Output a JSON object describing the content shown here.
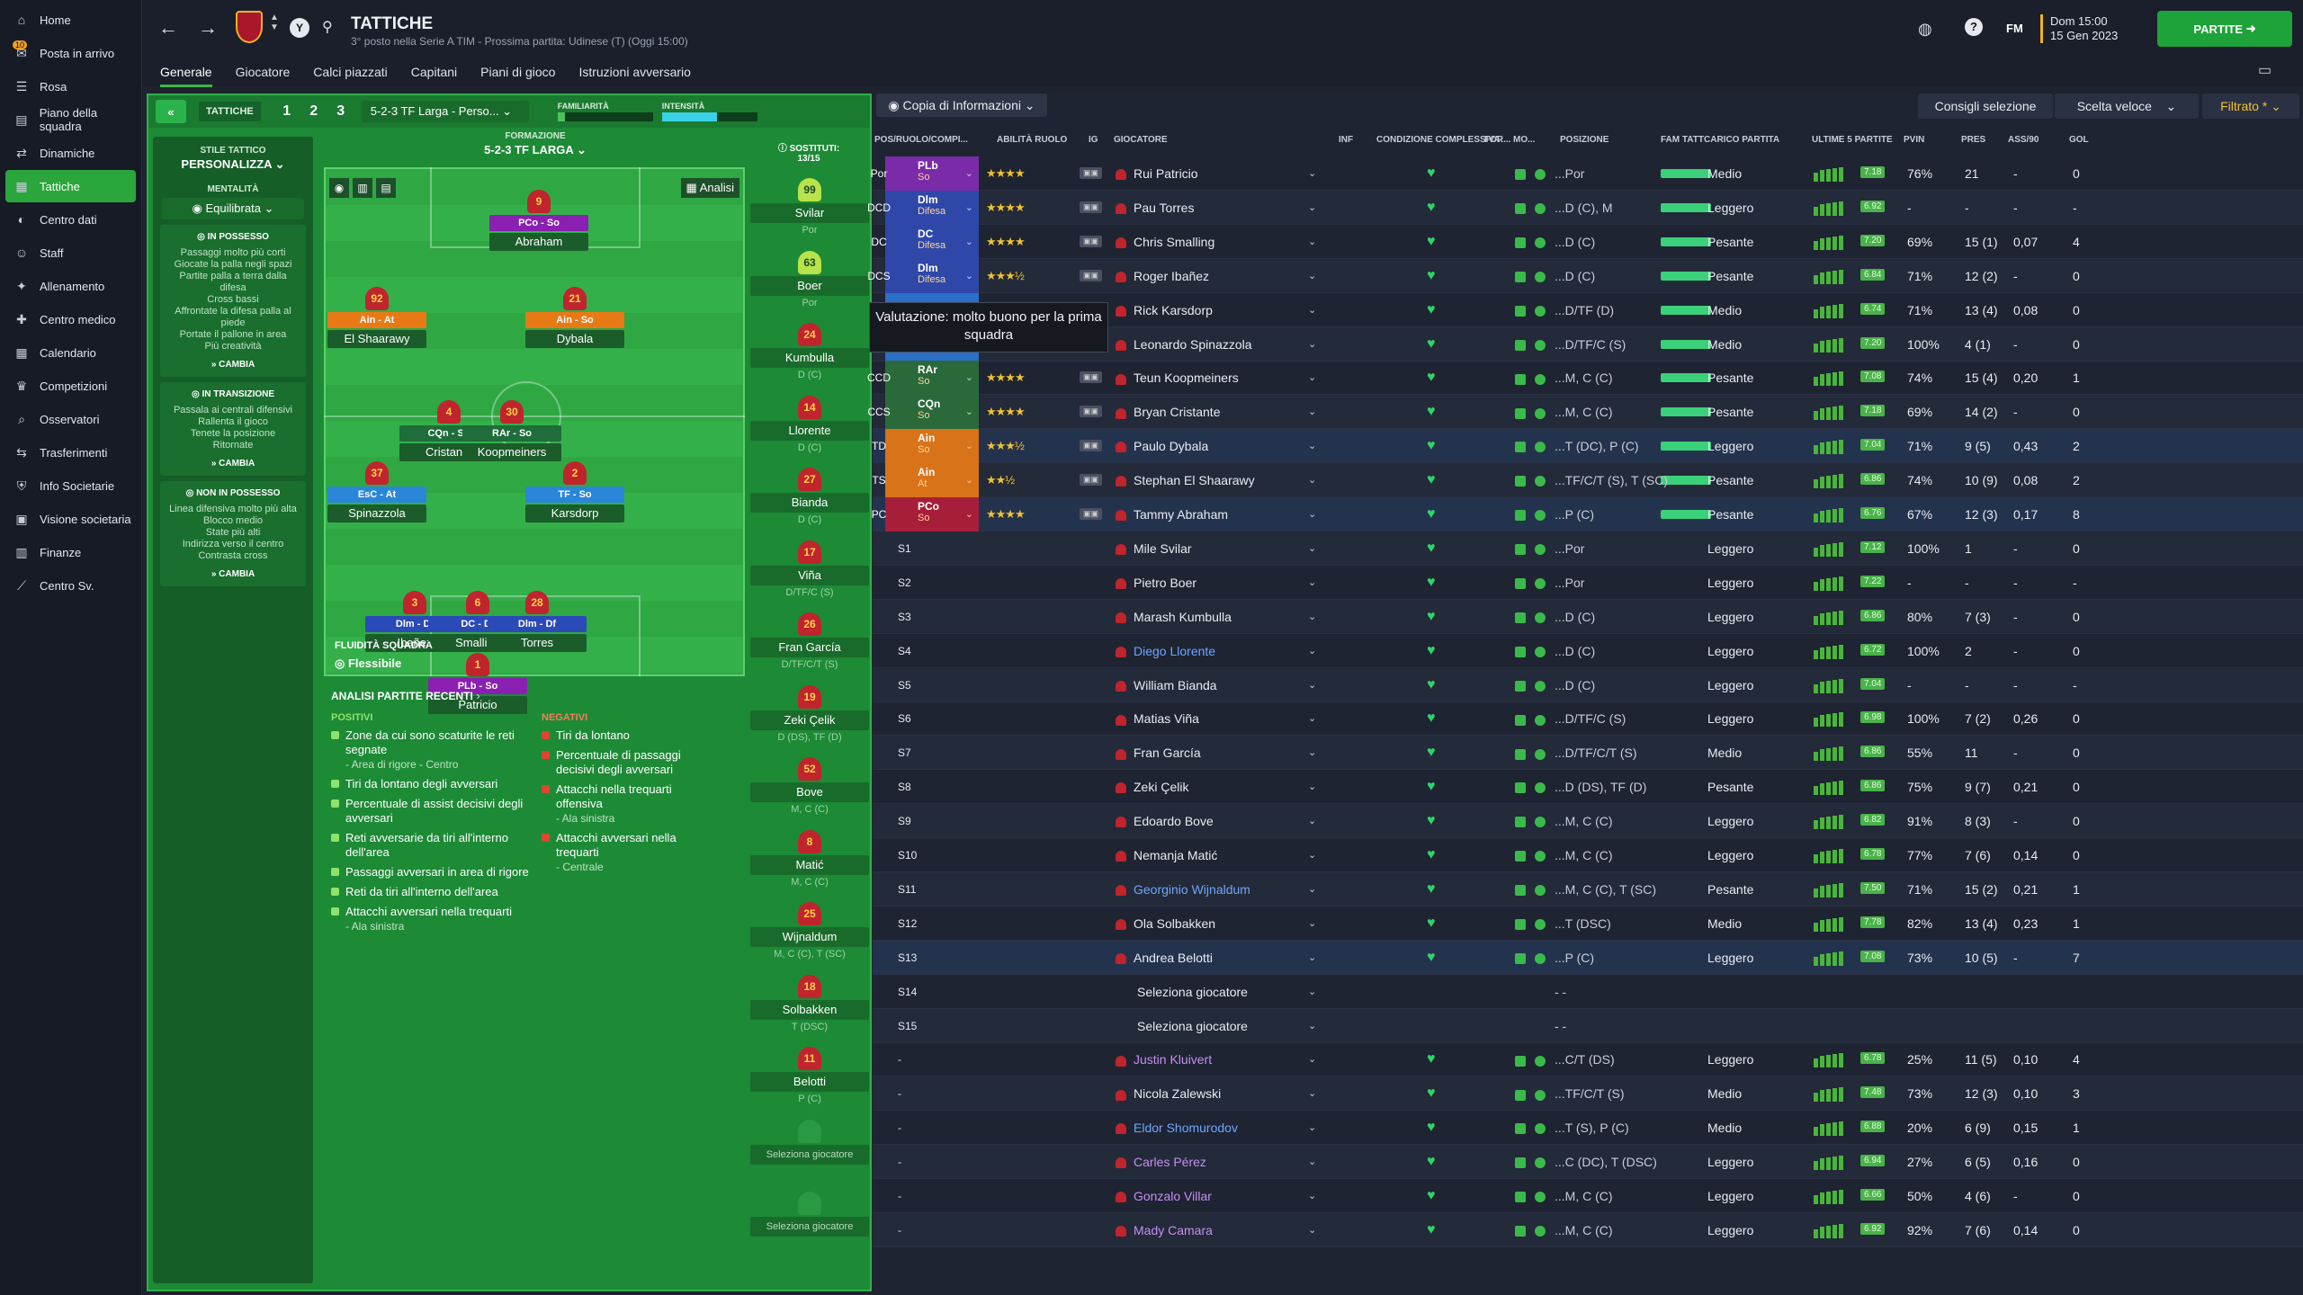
{
  "sidebar": {
    "items": [
      {
        "label": "Home",
        "icon": "home-icon"
      },
      {
        "label": "Posta in arrivo",
        "icon": "inbox-icon",
        "badge": "10"
      },
      {
        "label": "Rosa",
        "icon": "squad-icon"
      },
      {
        "label": "Piano della squadra",
        "icon": "plan-icon"
      },
      {
        "label": "Dinamiche",
        "icon": "dynamics-icon"
      },
      {
        "label": "Tattiche",
        "icon": "tactics-icon",
        "active": true
      },
      {
        "label": "Centro dati",
        "icon": "data-icon"
      },
      {
        "label": "Staff",
        "icon": "staff-icon"
      },
      {
        "label": "Allenamento",
        "icon": "training-icon"
      },
      {
        "label": "Centro medico",
        "icon": "medical-icon"
      },
      {
        "label": "Calendario",
        "icon": "calendar-icon"
      },
      {
        "label": "Competizioni",
        "icon": "trophy-icon"
      },
      {
        "label": "Osservatori",
        "icon": "scout-icon"
      },
      {
        "label": "Trasferimenti",
        "icon": "transfer-icon"
      },
      {
        "label": "Info Societarie",
        "icon": "club-info-icon"
      },
      {
        "label": "Visione societaria",
        "icon": "vision-icon"
      },
      {
        "label": "Finanze",
        "icon": "finance-icon"
      },
      {
        "label": "Centro Sv.",
        "icon": "development-icon"
      }
    ]
  },
  "header": {
    "title": "TATTICHE",
    "subtitle": "3° posto nella Serie A TIM - Prossima partita: Udinese (T) (Oggi 15:00)",
    "tabs": [
      "Generale",
      "Giocatore",
      "Calci piazzati",
      "Capitani",
      "Piani di gioco",
      "Istruzioni avversario"
    ],
    "date_line1": "Dom 15:00",
    "date_line2": "15 Gen 2023",
    "continue_label": "PARTITE",
    "fm_label": "FM"
  },
  "tactic": {
    "label": "TATTICHE",
    "slots": [
      "1",
      "2",
      "3"
    ],
    "selected": "5-2-3 TF Larga - Perso...",
    "familiarity_label": "FAMILIARITÀ",
    "intensity_label": "INTENSITÀ",
    "style_label": "STILE TATTICO",
    "style_value": "PERSONALIZZA",
    "mentality_label": "MENTALITÀ",
    "mentality_value": "Equilibrata",
    "formation_label": "FORMAZIONE",
    "formation_value": "5-2-3 TF LARGA",
    "analysis_btn": "Analisi",
    "fluidity_label": "FLUIDITÀ SQUADRA",
    "fluidity_value": "Flessibile",
    "subs_label": "SOSTITUTI:",
    "subs_count": "13/15"
  },
  "phases": [
    {
      "title": "IN POSSESSO",
      "lines": [
        "Passaggi molto più corti",
        "Giocate la palla negli spazi",
        "Partite palla a terra dalla difesa",
        "Cross bassi",
        "Affrontate la difesa palla al piede",
        "Portate il pallone in area",
        "Più creatività"
      ],
      "change": "CAMBIA"
    },
    {
      "title": "IN TRANSIZIONE",
      "lines": [
        "Passala ai centrali difensivi",
        "Rallenta il gioco",
        "Tenete la posizione",
        "Ritornate"
      ],
      "change": "CAMBIA"
    },
    {
      "title": "NON IN POSSESSO",
      "lines": [
        "Linea difensiva molto più alta",
        "Blocco medio",
        "State più alti",
        "Indirizza verso il centro",
        "Contrasta cross"
      ],
      "change": "CAMBIA"
    }
  ],
  "pitch_players": [
    {
      "num": "9",
      "role": "PCo - So",
      "name": "Abraham",
      "color": "#8a1fb2"
    },
    {
      "num": "92",
      "role": "Ain - At",
      "name": "El Shaarawy",
      "color": "#e87a16"
    },
    {
      "num": "21",
      "role": "Ain - So",
      "name": "Dybala",
      "color": "#e87a16"
    },
    {
      "num": "4",
      "role": "CQn - So",
      "name": "Cristante",
      "color": "#1f6d3a"
    },
    {
      "num": "30",
      "role": "RAr - So",
      "name": "Koopmeiners",
      "color": "#1f6d3a"
    },
    {
      "num": "37",
      "role": "EsC - At",
      "name": "Spinazzola",
      "color": "#2a86d8"
    },
    {
      "num": "2",
      "role": "TF - So",
      "name": "Karsdorp",
      "color": "#2a86d8"
    },
    {
      "num": "3",
      "role": "Dlm - Df",
      "name": "Ibañez",
      "color": "#2a4ab8"
    },
    {
      "num": "6",
      "role": "DC - Df",
      "name": "Smalling",
      "color": "#2a4ab8"
    },
    {
      "num": "28",
      "role": "Dlm - Df",
      "name": "Torres",
      "color": "#2a4ab8"
    },
    {
      "num": "1",
      "role": "PLb - So",
      "name": "Patricio",
      "color": "#8a1fb2"
    }
  ],
  "subs": [
    {
      "num": "99",
      "name": "Svilar",
      "pos": "Por"
    },
    {
      "num": "63",
      "name": "Boer",
      "pos": "Por"
    },
    {
      "num": "24",
      "name": "Kumbulla",
      "pos": "D (C)"
    },
    {
      "num": "14",
      "name": "Llorente",
      "pos": "D (C)"
    },
    {
      "num": "27",
      "name": "Bianda",
      "pos": "D (C)"
    },
    {
      "num": "17",
      "name": "Viña",
      "pos": "D/TF/C (S)"
    },
    {
      "num": "26",
      "name": "Fran García",
      "pos": "D/TF/C/T (S)"
    },
    {
      "num": "19",
      "name": "Zeki Çelik",
      "pos": "D (DS), TF (D)"
    },
    {
      "num": "52",
      "name": "Bove",
      "pos": "M, C (C)"
    },
    {
      "num": "8",
      "name": "Matić",
      "pos": "M, C (C)"
    },
    {
      "num": "25",
      "name": "Wijnaldum",
      "pos": "M, C (C), T (SC)"
    },
    {
      "num": "18",
      "name": "Solbakken",
      "pos": "T (DSC)"
    },
    {
      "num": "11",
      "name": "Belotti",
      "pos": "P (C)"
    },
    {
      "num": "",
      "name": "Seleziona giocatore",
      "pos": ""
    },
    {
      "num": "",
      "name": "Seleziona giocatore",
      "pos": ""
    }
  ],
  "analysis": {
    "title": "ANALISI PARTITE RECENTI",
    "positive_label": "POSITIVI",
    "negative_label": "NEGATIVI",
    "positives": [
      {
        "t": "Zone da cui sono scaturite le reti segnate",
        "s": "- Area di rigore - Centro"
      },
      {
        "t": "Tiri da lontano degli avversari",
        "s": ""
      },
      {
        "t": "Percentuale di assist decisivi degli avversari",
        "s": ""
      },
      {
        "t": "Reti avversarie da tiri all'interno dell'area",
        "s": ""
      },
      {
        "t": "Passaggi avversari in area di rigore",
        "s": ""
      },
      {
        "t": "Reti da tiri all'interno dell'area",
        "s": ""
      },
      {
        "t": "Attacchi avversari nella trequarti",
        "s": "- Ala sinistra"
      }
    ],
    "negatives": [
      {
        "t": "Tiri da lontano",
        "s": ""
      },
      {
        "t": "Percentuale di passaggi decisivi degli avversari",
        "s": ""
      },
      {
        "t": "Attacchi nella trequarti offensiva",
        "s": "- Ala sinistra"
      },
      {
        "t": "Attacchi avversari nella trequarti",
        "s": "- Centrale"
      }
    ]
  },
  "table": {
    "copy_label": "Copia di Informazioni",
    "btn_advice": "Consigli selezione",
    "btn_quick": "Scelta veloce",
    "btn_filter": "Filtrato *",
    "tooltip": "Valutazione: molto buono per la prima squadra",
    "headers": [
      "POS/RUOLO/COMPI...",
      "ABILITÀ RUOLO",
      "IG",
      "GIOCATORE",
      "INF",
      "CONDIZIONE COMPLESSIVA",
      "FOR...",
      "MO...",
      "POSIZIONE",
      "FAM TATT",
      "CARICO PARTITA",
      "ULTIME 5 PARTITE",
      "PVIN",
      "PRES",
      "ASS/90",
      "GOL"
    ],
    "rows": [
      {
        "slot": "Por",
        "role": "PLb",
        "duty": "So",
        "color": "#7a2ba8",
        "stars": "★★★★",
        "name": "Rui Patricio",
        "pos": "...Por",
        "load": "Medio",
        "rating": "7.18",
        "pvin": "76%",
        "pres": "21",
        "ass": "-",
        "gol": "0"
      },
      {
        "slot": "DCD",
        "role": "Dlm",
        "duty": "Difesa",
        "color": "#2e47a8",
        "stars": "★★★★",
        "name": "Pau Torres",
        "pos": "...D (C), M",
        "load": "Leggero",
        "rating": "6.92",
        "pvin": "-",
        "pres": "-",
        "ass": "-",
        "gol": "-"
      },
      {
        "slot": "DC",
        "role": "DC",
        "duty": "Difesa",
        "color": "#2e47a8",
        "stars": "★★★★",
        "name": "Chris Smalling",
        "pos": "...D (C)",
        "load": "Pesante",
        "rating": "7.20",
        "pvin": "69%",
        "pres": "15 (1)",
        "ass": "0,07",
        "gol": "4"
      },
      {
        "slot": "DCS",
        "role": "Dlm",
        "duty": "Difesa",
        "color": "#2e47a8",
        "stars": "★★★½",
        "name": "Roger Ibañez",
        "pos": "...D (C)",
        "load": "Pesante",
        "rating": "6.84",
        "pvin": "71%",
        "pres": "12 (2)",
        "ass": "-",
        "gol": "0"
      },
      {
        "slot": "",
        "role": "",
        "duty": "",
        "color": "#2a6fc8",
        "stars": "",
        "name": "Rick Karsdorp",
        "pos": "...D/TF (D)",
        "load": "Medio",
        "rating": "6.74",
        "pvin": "71%",
        "pres": "13 (4)",
        "ass": "0,08",
        "gol": "0"
      },
      {
        "slot": "",
        "role": "",
        "duty": "",
        "color": "#2a6fc8",
        "stars": "",
        "name": "Leonardo Spinazzola",
        "pos": "...D/TF/C (S)",
        "load": "Medio",
        "rating": "7.20",
        "pvin": "100%",
        "pres": "4 (1)",
        "ass": "-",
        "gol": "0"
      },
      {
        "slot": "CCD",
        "role": "RAr",
        "duty": "So",
        "color": "#2a6a3a",
        "stars": "★★★★",
        "name": "Teun Koopmeiners",
        "pos": "...M, C (C)",
        "load": "Pesante",
        "rating": "7.08",
        "pvin": "74%",
        "pres": "15 (4)",
        "ass": "0,20",
        "gol": "1"
      },
      {
        "slot": "CCS",
        "role": "CQn",
        "duty": "So",
        "color": "#2a6a3a",
        "stars": "★★★★",
        "name": "Bryan Cristante",
        "pos": "...M, C (C)",
        "load": "Pesante",
        "rating": "7.18",
        "pvin": "69%",
        "pres": "14 (2)",
        "ass": "-",
        "gol": "0"
      },
      {
        "slot": "TD",
        "role": "Ain",
        "duty": "So",
        "color": "#d9731a",
        "stars": "★★★½",
        "name": "Paulo Dybala",
        "pos": "...T (DC), P (C)",
        "load": "Leggero",
        "rating": "7.04",
        "pvin": "71%",
        "pres": "9 (5)",
        "ass": "0,43",
        "gol": "2"
      },
      {
        "slot": "TS",
        "role": "Ain",
        "duty": "At",
        "color": "#d9731a",
        "stars": "★★½",
        "name": "Stephan El Shaarawy",
        "pos": "...TF/C/T (S), T (SC)",
        "load": "Pesante",
        "rating": "6.86",
        "pvin": "74%",
        "pres": "10 (9)",
        "ass": "0,08",
        "gol": "2"
      },
      {
        "slot": "PC",
        "role": "PCo",
        "duty": "So",
        "color": "#a61e3a",
        "stars": "★★★★",
        "name": "Tammy Abraham",
        "pos": "...P (C)",
        "load": "Pesante",
        "rating": "6.76",
        "pvin": "67%",
        "pres": "12 (3)",
        "ass": "0,17",
        "gol": "8"
      },
      {
        "slot": "S1",
        "name": "Mile Svilar",
        "pos": "...Por",
        "load": "Leggero",
        "rating": "7.12",
        "pvin": "100%",
        "pres": "1",
        "ass": "-",
        "gol": "0"
      },
      {
        "slot": "S2",
        "name": "Pietro Boer",
        "pos": "...Por",
        "load": "Leggero",
        "rating": "7.22",
        "pvin": "-",
        "pres": "-",
        "ass": "-",
        "gol": "-"
      },
      {
        "slot": "S3",
        "name": "Marash Kumbulla",
        "pos": "...D (C)",
        "load": "Leggero",
        "rating": "6.86",
        "pvin": "80%",
        "pres": "7 (3)",
        "ass": "-",
        "gol": "0"
      },
      {
        "slot": "S4",
        "name": "Diego Llorente",
        "pos": "...D (C)",
        "load": "Leggero",
        "rating": "6.72",
        "pvin": "100%",
        "pres": "2",
        "ass": "-",
        "gol": "0"
      },
      {
        "slot": "S5",
        "name": "William Bianda",
        "pos": "...D (C)",
        "load": "Leggero",
        "rating": "7.04",
        "pvin": "-",
        "pres": "-",
        "ass": "-",
        "gol": "-"
      },
      {
        "slot": "S6",
        "name": "Matias Viña",
        "pos": "...D/TF/C (S)",
        "load": "Leggero",
        "rating": "6.98",
        "pvin": "100%",
        "pres": "7 (2)",
        "ass": "0,26",
        "gol": "0"
      },
      {
        "slot": "S7",
        "name": "Fran García",
        "pos": "...D/TF/C/T (S)",
        "load": "Medio",
        "rating": "6.86",
        "pvin": "55%",
        "pres": "11",
        "ass": "-",
        "gol": "0"
      },
      {
        "slot": "S8",
        "name": "Zeki Çelik",
        "pos": "...D (DS), TF (D)",
        "load": "Pesante",
        "rating": "6.86",
        "pvin": "75%",
        "pres": "9 (7)",
        "ass": "0,21",
        "gol": "0"
      },
      {
        "slot": "S9",
        "name": "Edoardo Bove",
        "pos": "...M, C (C)",
        "load": "Leggero",
        "rating": "6.82",
        "pvin": "91%",
        "pres": "8 (3)",
        "ass": "-",
        "gol": "0"
      },
      {
        "slot": "S10",
        "name": "Nemanja Matić",
        "pos": "...M, C (C)",
        "load": "Leggero",
        "rating": "6.78",
        "pvin": "77%",
        "pres": "7 (6)",
        "ass": "0,14",
        "gol": "0"
      },
      {
        "slot": "S11",
        "name": "Georginio Wijnaldum",
        "pos": "...M, C (C), T (SC)",
        "load": "Pesante",
        "rating": "7.50",
        "pvin": "71%",
        "pres": "15 (2)",
        "ass": "0,21",
        "gol": "1"
      },
      {
        "slot": "S12",
        "name": "Ola Solbakken",
        "pos": "...T (DSC)",
        "load": "Medio",
        "rating": "7.78",
        "pvin": "82%",
        "pres": "13 (4)",
        "ass": "0,23",
        "gol": "1"
      },
      {
        "slot": "S13",
        "name": "Andrea Belotti",
        "pos": "...P (C)",
        "load": "Leggero",
        "rating": "7.08",
        "pvin": "73%",
        "pres": "10 (5)",
        "ass": "-",
        "gol": "7"
      },
      {
        "slot": "S14",
        "name": "Seleziona giocatore",
        "pos": "- -",
        "load": "",
        "rating": "",
        "pvin": "",
        "pres": "",
        "ass": "",
        "gol": ""
      },
      {
        "slot": "S15",
        "name": "Seleziona giocatore",
        "pos": "- -",
        "load": "",
        "rating": "",
        "pvin": "",
        "pres": "",
        "ass": "",
        "gol": ""
      },
      {
        "slot": "-",
        "name": "Justin Kluivert",
        "pos": "...C/T (DS)",
        "load": "Leggero",
        "rating": "6.78",
        "pvin": "25%",
        "pres": "11 (5)",
        "ass": "0,10",
        "gol": "4"
      },
      {
        "slot": "-",
        "name": "Nicola Zalewski",
        "pos": "...TF/C/T (S)",
        "load": "Medio",
        "rating": "7.48",
        "pvin": "73%",
        "pres": "12 (3)",
        "ass": "0,10",
        "gol": "3"
      },
      {
        "slot": "-",
        "name": "Eldor Shomurodov",
        "pos": "...T (S), P (C)",
        "load": "Medio",
        "rating": "6.88",
        "pvin": "20%",
        "pres": "6 (9)",
        "ass": "0,15",
        "gol": "1"
      },
      {
        "slot": "-",
        "name": "Carles Pérez",
        "pos": "...C (DC), T (DSC)",
        "load": "Leggero",
        "rating": "6.94",
        "pvin": "27%",
        "pres": "6 (5)",
        "ass": "0,16",
        "gol": "0"
      },
      {
        "slot": "-",
        "name": "Gonzalo Villar",
        "pos": "...M, C (C)",
        "load": "Leggero",
        "rating": "6.66",
        "pvin": "50%",
        "pres": "4 (6)",
        "ass": "-",
        "gol": "0"
      },
      {
        "slot": "-",
        "name": "Mady Camara",
        "pos": "...M, C (C)",
        "load": "Leggero",
        "rating": "6.92",
        "pvin": "92%",
        "pres": "7 (6)",
        "ass": "0,14",
        "gol": "0"
      }
    ]
  }
}
